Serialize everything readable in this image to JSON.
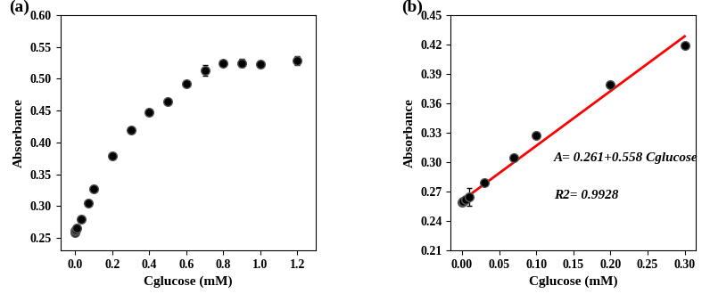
{
  "chart_data": [
    {
      "type": "scatter",
      "panel_label": "(a)",
      "x_label": "Cglucose (mM)",
      "y_label": "Absorbance",
      "x": [
        0,
        0.001,
        0.005,
        0.01,
        0.03,
        0.07,
        0.1,
        0.2,
        0.3,
        0.4,
        0.5,
        0.6,
        0.7,
        0.8,
        0.9,
        1.0,
        1.2
      ],
      "values": [
        0.259,
        0.261,
        0.263,
        0.266,
        0.279,
        0.305,
        0.327,
        0.379,
        0.419,
        0.448,
        0.464,
        0.492,
        0.513,
        0.524,
        0.525,
        0.523,
        0.528
      ],
      "errors": [
        0.002,
        0.002,
        0.002,
        0.003,
        0.002,
        0.002,
        0.002,
        0.002,
        0.002,
        0.002,
        0.002,
        0.002,
        0.008,
        0.003,
        0.006,
        0.003,
        0.007
      ],
      "color": "#000000",
      "marker": "o",
      "xlim": [
        -0.08,
        1.3
      ],
      "ylim": [
        0.23,
        0.6
      ],
      "xticks": [
        {
          "value": 0,
          "label": "0.0"
        },
        {
          "value": 0.2,
          "label": "0.2"
        },
        {
          "value": 0.4,
          "label": "0.4"
        },
        {
          "value": 0.6,
          "label": "0.6"
        },
        {
          "value": 0.8,
          "label": "0.8"
        },
        {
          "value": 1.0,
          "label": "1.0"
        },
        {
          "value": 1.2,
          "label": "1.2"
        }
      ],
      "yticks": [
        {
          "value": 0.25,
          "label": "0.25"
        },
        {
          "value": 0.3,
          "label": "0.30"
        },
        0.35,
        {
          "value": 0.4,
          "label": "0.40"
        },
        0.45,
        {
          "value": 0.5,
          "label": "0.50"
        },
        0.55,
        {
          "value": 0.6,
          "label": "0.60"
        }
      ]
    },
    {
      "type": "scatter",
      "panel_label": "(b)",
      "x_label": "Cglucose (mM)",
      "y_label": "Absorbance",
      "x": [
        0,
        0.001,
        0.005,
        0.01,
        0.03,
        0.07,
        0.1,
        0.2,
        0.3
      ],
      "values": [
        0.259,
        0.26,
        0.262,
        0.265,
        0.279,
        0.305,
        0.327,
        0.379,
        0.419
      ],
      "errors": [
        0.002,
        0.002,
        0.002,
        0.009,
        0.002,
        0.002,
        0.002,
        0.002,
        0.002
      ],
      "color": "#000000",
      "marker": "o",
      "fit": {
        "type": "line",
        "color": "#ff0000",
        "x": [
          0,
          0.3
        ],
        "values": [
          0.261,
          0.4284
        ]
      },
      "annotations": [
        "A= 0.261+0.558 Cglucose",
        "R2= 0.9928"
      ],
      "xlim": [
        -0.015,
        0.315
      ],
      "ylim": [
        0.21,
        0.45
      ],
      "xticks": [
        {
          "value": 0,
          "label": "0.00"
        },
        0.05,
        {
          "value": 0.1,
          "label": "0.10"
        },
        0.15,
        {
          "value": 0.2,
          "label": "0.20"
        },
        0.25,
        {
          "value": 0.3,
          "label": "0.30"
        }
      ],
      "yticks": [
        0.21,
        0.24,
        0.27,
        {
          "value": 0.3,
          "label": "0.30"
        },
        0.33,
        0.36,
        0.39,
        0.42,
        0.45
      ]
    }
  ]
}
